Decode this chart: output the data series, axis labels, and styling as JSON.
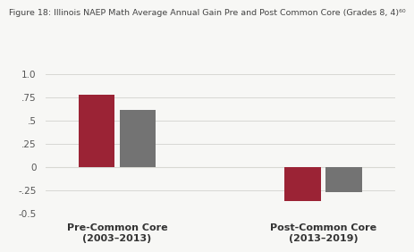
{
  "title": "Figure 18: Illinois NAEP Math Average Annual Gain Pre and Post Common Core (Grades 8, 4)⁶⁰",
  "groups": [
    "Pre-Common Core\n(2003–2013)",
    "Post-Common Core\n(2013–2019)"
  ],
  "group_centers": [
    1.0,
    3.0
  ],
  "bar_values": [
    [
      0.78,
      0.62
    ],
    [
      -0.36,
      -0.27
    ]
  ],
  "bar_colors": [
    "#9b2335",
    "#737373"
  ],
  "bar_width": 0.35,
  "bar_offsets": [
    -0.2,
    0.2
  ],
  "ylim": [
    -0.5,
    1.0
  ],
  "yticks": [
    -0.5,
    -0.25,
    0.0,
    0.25,
    0.5,
    0.75,
    1.0
  ],
  "ytick_labels": [
    "-0.5",
    "-.25",
    "0",
    ".25",
    ".5",
    ".75",
    "1.0"
  ],
  "background_color": "#f7f7f5",
  "grid_color": "#d8d8d3",
  "title_fontsize": 6.8,
  "label_fontsize": 8,
  "tick_fontsize": 7.5
}
